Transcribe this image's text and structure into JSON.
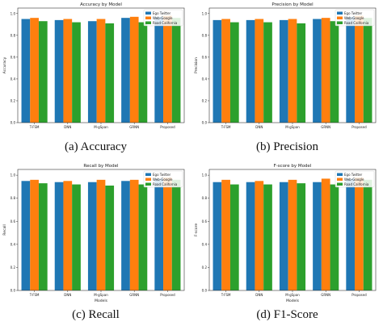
{
  "colors": {
    "Ego Twitter": "#1f77b4",
    "Web-Google": "#ff7f0e",
    "Road California": "#2ca02c"
  },
  "captions": [
    "(a)  Accuracy",
    "(b) Precision",
    "(c)  Recall",
    "(d)  F1-Score"
  ],
  "chart_data": [
    {
      "type": "bar",
      "title": "Accuracy by Model",
      "xlabel": "",
      "ylabel": "Accuracy",
      "ylim": [
        0,
        1.05
      ],
      "yticks": [
        0.0,
        0.2,
        0.4,
        0.6,
        0.8,
        1.0
      ],
      "categories": [
        "T-FSM",
        "DNN",
        "M-gSpan",
        "GRNN",
        "Proposed"
      ],
      "legend": "top-right",
      "series": [
        {
          "name": "Ego Twitter",
          "values": [
            0.95,
            0.94,
            0.93,
            0.96,
            0.97
          ]
        },
        {
          "name": "Web-Google",
          "values": [
            0.96,
            0.95,
            0.95,
            0.97,
            0.98
          ]
        },
        {
          "name": "Road California",
          "values": [
            0.93,
            0.92,
            0.91,
            0.92,
            0.96
          ]
        }
      ]
    },
    {
      "type": "bar",
      "title": "Precision by Model",
      "xlabel": "",
      "ylabel": "Precision",
      "ylim": [
        0,
        1.05
      ],
      "yticks": [
        0.0,
        0.2,
        0.4,
        0.6,
        0.8,
        1.0
      ],
      "categories": [
        "T-FSM",
        "DNN",
        "M-gSpan",
        "GRNN",
        "Proposed"
      ],
      "legend": "top-right",
      "series": [
        {
          "name": "Ego Twitter",
          "values": [
            0.94,
            0.94,
            0.94,
            0.95,
            0.97
          ]
        },
        {
          "name": "Web-Google",
          "values": [
            0.95,
            0.95,
            0.95,
            0.96,
            0.98
          ]
        },
        {
          "name": "Road California",
          "values": [
            0.92,
            0.92,
            0.91,
            0.93,
            0.96
          ]
        }
      ]
    },
    {
      "type": "bar",
      "title": "Recall by Model",
      "xlabel": "Models",
      "ylabel": "Recall",
      "ylim": [
        0,
        1.05
      ],
      "yticks": [
        0.0,
        0.2,
        0.4,
        0.6,
        0.8,
        1.0
      ],
      "categories": [
        "T-FSM",
        "DNN",
        "M-gSpan",
        "GRNN",
        "Proposed"
      ],
      "legend": "top-right",
      "series": [
        {
          "name": "Ego Twitter",
          "values": [
            0.95,
            0.94,
            0.94,
            0.95,
            0.97
          ]
        },
        {
          "name": "Web-Google",
          "values": [
            0.96,
            0.95,
            0.96,
            0.96,
            0.98
          ]
        },
        {
          "name": "Road California",
          "values": [
            0.93,
            0.92,
            0.91,
            0.92,
            0.96
          ]
        }
      ]
    },
    {
      "type": "bar",
      "title": "F-score by Model",
      "xlabel": "Models",
      "ylabel": "F-score",
      "ylim": [
        0,
        1.05
      ],
      "yticks": [
        0.0,
        0.2,
        0.4,
        0.6,
        0.8,
        1.0
      ],
      "categories": [
        "T-FSM",
        "DNN",
        "M-gSpan",
        "GRNN",
        "Proposed"
      ],
      "legend": "top-right",
      "series": [
        {
          "name": "Ego Twitter",
          "values": [
            0.94,
            0.94,
            0.94,
            0.94,
            0.97
          ]
        },
        {
          "name": "Web-Google",
          "values": [
            0.96,
            0.95,
            0.96,
            0.97,
            0.98
          ]
        },
        {
          "name": "Road California",
          "values": [
            0.92,
            0.92,
            0.93,
            0.92,
            0.96
          ]
        }
      ]
    }
  ]
}
